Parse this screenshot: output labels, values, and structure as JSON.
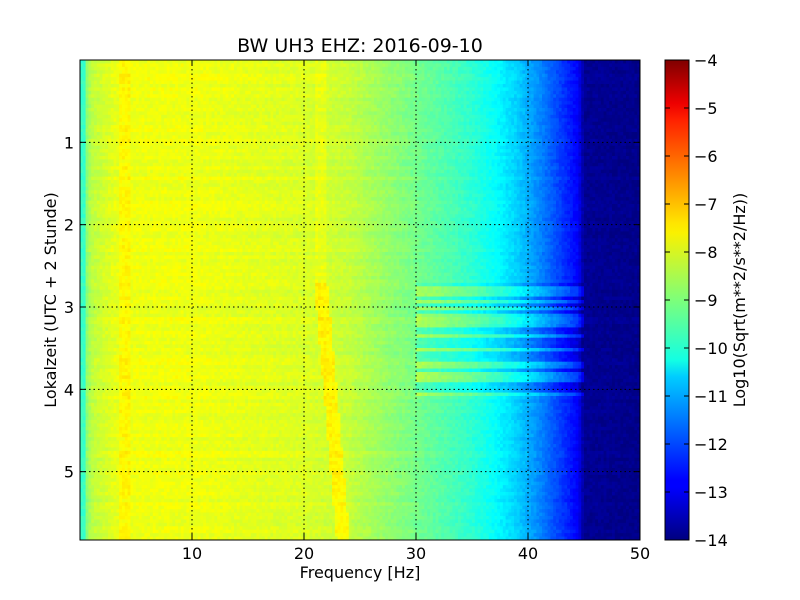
{
  "chart_data": {
    "type": "heatmap",
    "title": "BW UH3 EHZ: 2016-09-10",
    "xlabel": "Frequency [Hz]",
    "ylabel": "Lokalzeit (UTC + 2 Stunde)",
    "xlim": [
      0,
      50
    ],
    "ylim": [
      0,
      5.83
    ],
    "y_inverted": true,
    "x_ticks": [
      10,
      20,
      30,
      40,
      50
    ],
    "y_ticks": [
      1,
      2,
      3,
      4,
      5
    ],
    "grid": true,
    "colormap": "jet",
    "colorbar": {
      "label": "Log10(Sqrt(m**2/s**2/Hz))",
      "range": [
        -14,
        -4
      ],
      "ticks": [
        -4,
        -5,
        -6,
        -7,
        -8,
        -9,
        -10,
        -11,
        -12,
        -13,
        -14
      ]
    },
    "spectral_profile": {
      "frequency_hz": [
        0,
        1,
        3,
        5,
        10,
        15,
        20,
        24,
        26,
        30,
        33,
        35,
        37,
        39,
        41,
        43,
        44.5,
        45,
        50
      ],
      "log_amplitude": [
        -9.6,
        -8.4,
        -8.0,
        -7.9,
        -7.9,
        -8.0,
        -8.1,
        -8.3,
        -8.6,
        -9.1,
        -9.5,
        -9.8,
        -10.2,
        -10.7,
        -11.4,
        -12.2,
        -12.8,
        -13.8,
        -13.9
      ]
    },
    "features": {
      "line_21hz_start_time": 2.7,
      "line_21hz_end_time": 5.83,
      "narrowband_line_frequency_hz": [
        21.5,
        23.5
      ],
      "banded_activity_time_range": [
        2.7,
        4.1
      ],
      "banded_activity_frequency_range_hz": [
        30,
        45
      ]
    }
  }
}
